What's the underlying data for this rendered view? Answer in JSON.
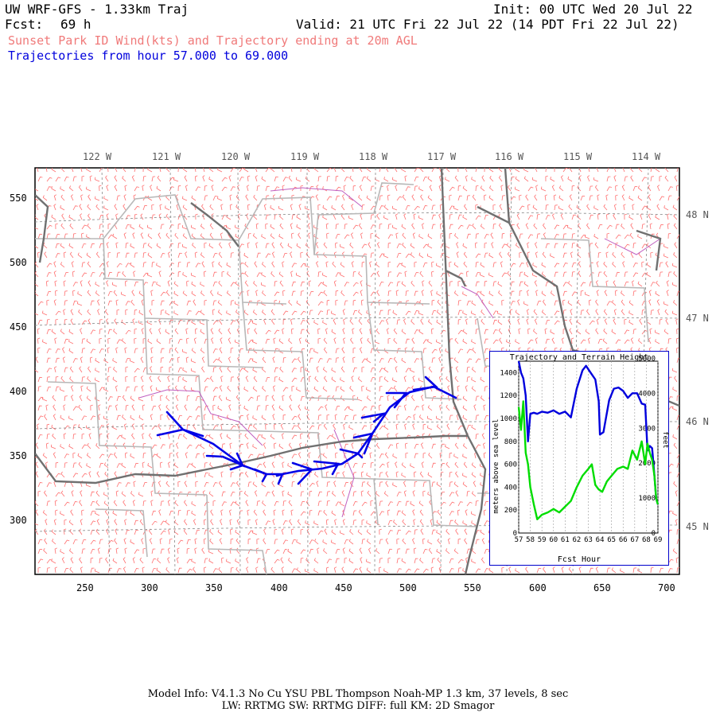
{
  "header": {
    "model_title": "UW WRF-GFS - 1.33km Traj",
    "init": "Init: 00 UTC Wed 20 Jul 22",
    "fcst_label": "Fcst:",
    "fcst_value": "69 h",
    "valid": "Valid: 21 UTC Fri 22 Jul 22 (14 PDT Fri 22 Jul 22)",
    "subtitle": "Sunset Park ID Wind(kts) and Trajectory ending at 20m AGL",
    "traj_range": "Trajectories from hour  57.000 to  69.000"
  },
  "map": {
    "lon_labels": [
      "122 W",
      "121 W",
      "120 W",
      "119 W",
      "118 W",
      "117 W",
      "116 W",
      "115 W",
      "114 W"
    ],
    "lat_labels": [
      "48 N",
      "47 N",
      "46 N",
      "45 N"
    ],
    "x_ticks": [
      "250",
      "300",
      "350",
      "400",
      "450",
      "500",
      "550",
      "600",
      "650",
      "700"
    ],
    "y_ticks": [
      "550",
      "500",
      "450",
      "400",
      "350",
      "300"
    ],
    "colors": {
      "barbs": "#ff6e6e",
      "trajectory": "#0000e6",
      "state_border": "#707070",
      "county": "#b8b8b8",
      "water": "#c060c0"
    }
  },
  "inset": {
    "title": "Trajectory and Terrain Height",
    "xlabel": "Fcst Hour",
    "ylabel_left": "meters above sea level",
    "ylabel_right": "feet",
    "left_ticks": [
      "0",
      "200",
      "400",
      "600",
      "800",
      "1000",
      "1200",
      "1400"
    ],
    "right_ticks": [
      "0",
      "1000",
      "2000",
      "3000",
      "4000",
      "5000"
    ],
    "x_ticks": [
      "57",
      "58",
      "59",
      "60",
      "61",
      "62",
      "63",
      "64",
      "65",
      "66",
      "67",
      "68",
      "69"
    ]
  },
  "chart_data": {
    "type": "line",
    "title": "Trajectory and Terrain Height",
    "xlabel": "Fcst Hour",
    "ylabel": "meters above sea level",
    "xlim": [
      57,
      69
    ],
    "ylim": [
      0,
      1500
    ],
    "series": [
      {
        "color": "#0000dd",
        "x": [
          57.0,
          57.2,
          57.4,
          57.6,
          57.8,
          58.0,
          58.3,
          58.6,
          59.0,
          59.5,
          60.0,
          60.5,
          61.0,
          61.5,
          62.0,
          62.5,
          62.8,
          63.2,
          63.6,
          63.9,
          64.0,
          64.3,
          64.8,
          65.2,
          65.6,
          66.0,
          66.4,
          66.8,
          67.2,
          67.6,
          67.9,
          68.1,
          68.3,
          68.5,
          68.7,
          68.85,
          69.0
        ],
        "y": [
          1500,
          1400,
          1350,
          1200,
          800,
          1040,
          1050,
          1040,
          1060,
          1050,
          1070,
          1040,
          1060,
          1010,
          1260,
          1420,
          1460,
          1400,
          1340,
          1150,
          860,
          880,
          1160,
          1260,
          1270,
          1240,
          1180,
          1220,
          1220,
          1130,
          1120,
          720,
          760,
          740,
          500,
          300,
          250
        ]
      },
      {
        "color": "#00dd00",
        "x": [
          57.0,
          57.2,
          57.4,
          57.6,
          57.8,
          58.0,
          58.3,
          58.6,
          59.0,
          59.5,
          60.0,
          60.5,
          61.0,
          61.5,
          62.0,
          62.5,
          63.0,
          63.3,
          63.6,
          63.9,
          64.2,
          64.6,
          65.0,
          65.5,
          66.0,
          66.4,
          66.8,
          67.2,
          67.6,
          67.9,
          68.1,
          68.3,
          68.5,
          68.7,
          68.85,
          69.0
        ],
        "y": [
          1100,
          900,
          1150,
          700,
          600,
          400,
          250,
          120,
          160,
          180,
          210,
          180,
          230,
          280,
          400,
          500,
          560,
          600,
          420,
          380,
          360,
          450,
          500,
          560,
          580,
          560,
          720,
          640,
          800,
          600,
          780,
          700,
          640,
          500,
          300,
          250
        ]
      }
    ]
  },
  "footer": {
    "line1": "Model Info: V4.1.3    No Cu    YSU PBL   Thompson     Noah-MP    1.3 km,   37 levels,     8 sec",
    "line2": "LW: RRTMG SW: RRTMG    DIFF: full    KM: 2D Smagor"
  }
}
